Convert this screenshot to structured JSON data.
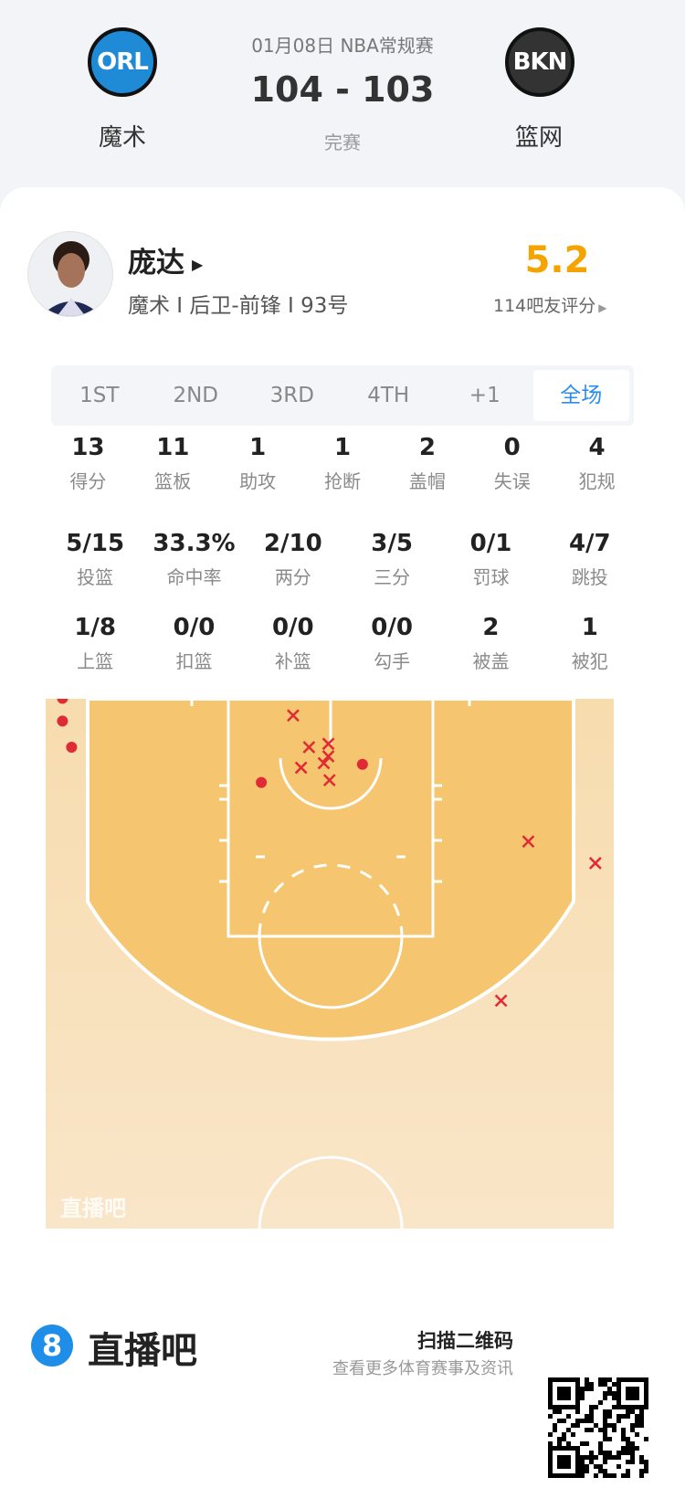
{
  "header": {
    "date_league": "01月08日 NBA常规赛",
    "score": "104 - 103",
    "status": "完赛",
    "home": {
      "abbr": "ORL",
      "name": "魔术",
      "color": "#1f8ad6"
    },
    "away": {
      "abbr": "BKN",
      "name": "篮网",
      "color": "#222222"
    }
  },
  "player": {
    "name": "庞达",
    "info": "魔术 I 后卫-前锋 I 93号",
    "rating": "5.2",
    "rating_label": "114吧友评分",
    "rating_color": "#f5a300"
  },
  "tabs": [
    {
      "label": "1ST"
    },
    {
      "label": "2ND"
    },
    {
      "label": "3RD"
    },
    {
      "label": "4TH"
    },
    {
      "label": "+1"
    },
    {
      "label": "全场",
      "active": true
    }
  ],
  "stats_rows": [
    [
      {
        "v": "13",
        "l": "得分"
      },
      {
        "v": "11",
        "l": "篮板"
      },
      {
        "v": "1",
        "l": "助攻"
      },
      {
        "v": "1",
        "l": "抢断"
      },
      {
        "v": "2",
        "l": "盖帽"
      },
      {
        "v": "0",
        "l": "失误"
      },
      {
        "v": "4",
        "l": "犯规"
      }
    ],
    [
      {
        "v": "5/15",
        "l": "投篮"
      },
      {
        "v": "33.3%",
        "l": "命中率"
      },
      {
        "v": "2/10",
        "l": "两分"
      },
      {
        "v": "3/5",
        "l": "三分"
      },
      {
        "v": "0/1",
        "l": "罚球"
      },
      {
        "v": "4/7",
        "l": "跳投"
      }
    ],
    [
      {
        "v": "1/8",
        "l": "上篮"
      },
      {
        "v": "0/0",
        "l": "扣篮"
      },
      {
        "v": "0/0",
        "l": "补篮"
      },
      {
        "v": "0/0",
        "l": "勾手"
      },
      {
        "v": "2",
        "l": "被盖"
      },
      {
        "v": "1",
        "l": "被犯"
      }
    ]
  ],
  "shot_chart": {
    "watermark": "直播吧",
    "units": "feet from basket",
    "made_color": "#e02a35",
    "shots": [
      {
        "x": -23.6,
        "y": -5.1,
        "made": true
      },
      {
        "x": -23.6,
        "y": -3.1,
        "made": true
      },
      {
        "x": -22.8,
        "y": -0.8,
        "made": true
      },
      {
        "x": -6.1,
        "y": 2.3,
        "made": true
      },
      {
        "x": 2.8,
        "y": 0.7,
        "made": true
      },
      {
        "x": -3.3,
        "y": -3.6,
        "made": false
      },
      {
        "x": -1.9,
        "y": -0.8,
        "made": false
      },
      {
        "x": -0.2,
        "y": -1.1,
        "made": false
      },
      {
        "x": -0.2,
        "y": 0,
        "made": false
      },
      {
        "x": -2.6,
        "y": 1.0,
        "made": false
      },
      {
        "x": -0.6,
        "y": 0.6,
        "made": false
      },
      {
        "x": -0.1,
        "y": 2.1,
        "made": false
      },
      {
        "x": 17.4,
        "y": 7.5,
        "made": false
      },
      {
        "x": 23.3,
        "y": 9.4,
        "made": false
      },
      {
        "x": 15.0,
        "y": 21.5,
        "made": false
      }
    ]
  },
  "footer": {
    "brand": "直播吧",
    "brand_badge": "8",
    "scan_title": "扫描二维码",
    "scan_sub": "查看更多体育赛事及资讯"
  }
}
